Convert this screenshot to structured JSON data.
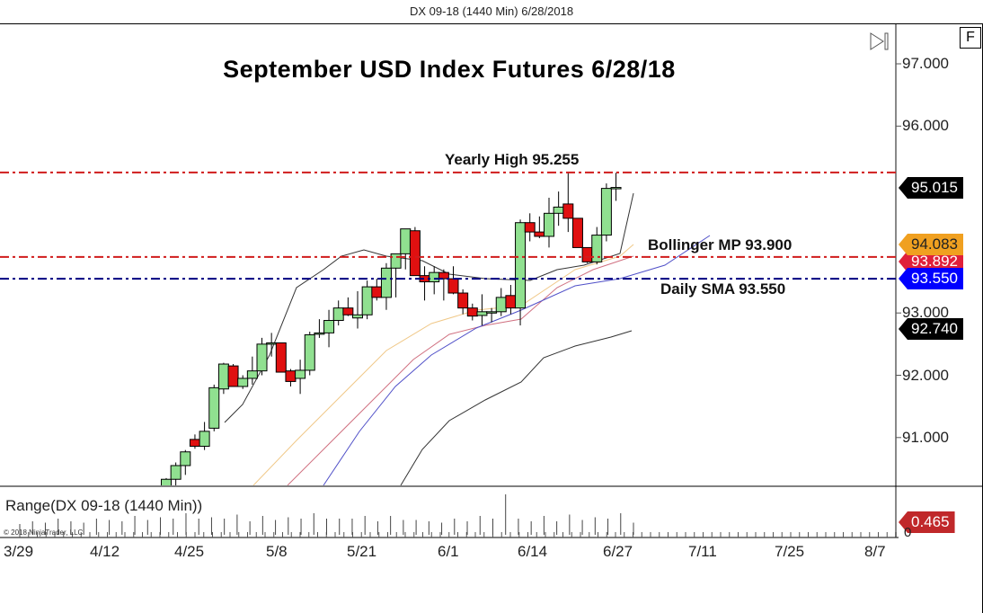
{
  "window": {
    "title": "DX 09-18 (1440 Min)  6/28/2018",
    "f_button": "F",
    "scroll_end_icon": "scroll-to-end-icon"
  },
  "chart_data": {
    "type": "candlestick",
    "title": "September USD Index Futures 6/28/18",
    "instrument": "DX 09-18 (1440 Min)",
    "xlabel": "",
    "ylabel": "",
    "x_tick_labels": [
      "3/29",
      "4/12",
      "4/25",
      "5/8",
      "5/21",
      "6/1",
      "6/14",
      "6/27",
      "7/11",
      "7/25",
      "8/7"
    ],
    "y_tick_labels": [
      "97.000",
      "96.000",
      "93.000",
      "92.000",
      "91.000"
    ],
    "ylim": [
      90.3,
      97.5
    ],
    "grid": false,
    "annotations": [
      {
        "text": "Yearly High 95.255",
        "value": 95.255,
        "line_color": "#d01c1c",
        "style": "dash-dot"
      },
      {
        "text": "Bollinger MP 93.900",
        "value": 93.9,
        "line_color": "#d01c1c",
        "style": "dash-dot"
      },
      {
        "text": "Daily SMA 93.550",
        "value": 93.55,
        "line_color": "#000080",
        "style": "dash-dot"
      }
    ],
    "price_markers": [
      {
        "value": "95.015",
        "color": "#000000",
        "text_color": "#ffffff"
      },
      {
        "value": "94.083",
        "color": "#f0a020",
        "text_color": "#222222"
      },
      {
        "value": "93.892",
        "color": "#e0203a",
        "text_color": "#ffffff"
      },
      {
        "value": "93.550",
        "color": "#0000ff",
        "text_color": "#ffffff"
      },
      {
        "value": "92.740",
        "color": "#000000",
        "text_color": "#ffffff"
      }
    ],
    "candles": [
      {
        "date": "4/19",
        "open": 90.2,
        "high": 90.35,
        "low": 90.05,
        "close": 90.33
      },
      {
        "date": "4/20",
        "open": 90.33,
        "high": 90.6,
        "low": 90.2,
        "close": 90.55
      },
      {
        "date": "4/23",
        "open": 90.55,
        "high": 90.8,
        "low": 90.4,
        "close": 90.77
      },
      {
        "date": "4/24",
        "open": 90.97,
        "high": 91.05,
        "low": 90.82,
        "close": 90.86
      },
      {
        "date": "4/25",
        "open": 90.86,
        "high": 91.25,
        "low": 90.8,
        "close": 91.1
      },
      {
        "date": "4/26",
        "open": 91.15,
        "high": 91.85,
        "low": 91.1,
        "close": 91.8
      },
      {
        "date": "4/27",
        "open": 91.78,
        "high": 92.2,
        "low": 91.7,
        "close": 92.18
      },
      {
        "date": "4/30",
        "open": 92.15,
        "high": 92.18,
        "low": 91.82,
        "close": 91.82
      },
      {
        "date": "5/1",
        "open": 91.82,
        "high": 92.0,
        "low": 91.78,
        "close": 91.95
      },
      {
        "date": "5/2",
        "open": 91.95,
        "high": 92.3,
        "low": 91.85,
        "close": 92.07
      },
      {
        "date": "5/3",
        "open": 92.07,
        "high": 92.6,
        "low": 92.0,
        "close": 92.5
      },
      {
        "date": "5/4",
        "open": 92.5,
        "high": 92.68,
        "low": 92.3,
        "close": 92.52
      },
      {
        "date": "5/7",
        "open": 92.52,
        "high": 92.52,
        "low": 92.05,
        "close": 92.05
      },
      {
        "date": "5/8",
        "open": 92.07,
        "high": 92.1,
        "low": 91.82,
        "close": 91.9
      },
      {
        "date": "5/9",
        "open": 91.95,
        "high": 92.25,
        "low": 91.7,
        "close": 92.08
      },
      {
        "date": "5/10",
        "open": 92.08,
        "high": 92.7,
        "low": 92.0,
        "close": 92.65
      },
      {
        "date": "5/11",
        "open": 92.68,
        "high": 92.9,
        "low": 92.6,
        "close": 92.68
      },
      {
        "date": "5/14",
        "open": 92.68,
        "high": 93.05,
        "low": 92.45,
        "close": 92.88
      },
      {
        "date": "5/15",
        "open": 92.88,
        "high": 93.2,
        "low": 92.8,
        "close": 93.08
      },
      {
        "date": "5/16",
        "open": 93.08,
        "high": 93.25,
        "low": 92.95,
        "close": 92.97
      },
      {
        "date": "5/17",
        "open": 92.92,
        "high": 93.35,
        "low": 92.75,
        "close": 92.97
      },
      {
        "date": "5/18",
        "open": 92.97,
        "high": 93.52,
        "low": 92.9,
        "close": 93.42
      },
      {
        "date": "5/21",
        "open": 93.42,
        "high": 93.55,
        "low": 93.2,
        "close": 93.25
      },
      {
        "date": "5/22",
        "open": 93.25,
        "high": 93.8,
        "low": 93.05,
        "close": 93.72
      },
      {
        "date": "5/23",
        "open": 93.72,
        "high": 93.95,
        "low": 93.25,
        "close": 93.95
      },
      {
        "date": "5/24",
        "open": 93.95,
        "high": 94.35,
        "low": 93.7,
        "close": 94.35
      },
      {
        "date": "5/25",
        "open": 94.32,
        "high": 94.38,
        "low": 93.6,
        "close": 93.6
      },
      {
        "date": "5/29",
        "open": 93.6,
        "high": 93.75,
        "low": 93.2,
        "close": 93.5
      },
      {
        "date": "5/30",
        "open": 93.5,
        "high": 93.75,
        "low": 93.3,
        "close": 93.65
      },
      {
        "date": "5/31",
        "open": 93.65,
        "high": 93.7,
        "low": 93.2,
        "close": 93.55
      },
      {
        "date": "6/1",
        "open": 93.55,
        "high": 93.75,
        "low": 93.3,
        "close": 93.32
      },
      {
        "date": "6/4",
        "open": 93.32,
        "high": 93.38,
        "low": 92.98,
        "close": 93.08
      },
      {
        "date": "6/5",
        "open": 93.08,
        "high": 93.15,
        "low": 92.88,
        "close": 92.95
      },
      {
        "date": "6/6",
        "open": 92.96,
        "high": 93.3,
        "low": 92.8,
        "close": 93.02
      },
      {
        "date": "6/7",
        "open": 93.02,
        "high": 93.08,
        "low": 92.85,
        "close": 93.02
      },
      {
        "date": "6/8",
        "open": 93.02,
        "high": 93.4,
        "low": 92.95,
        "close": 93.25
      },
      {
        "date": "6/11",
        "open": 93.28,
        "high": 93.45,
        "low": 92.98,
        "close": 93.08
      },
      {
        "date": "6/12",
        "open": 93.08,
        "high": 94.5,
        "low": 92.8,
        "close": 94.45
      },
      {
        "date": "6/13",
        "open": 94.45,
        "high": 94.6,
        "low": 94.15,
        "close": 94.3
      },
      {
        "date": "6/14",
        "open": 94.3,
        "high": 94.55,
        "low": 94.2,
        "close": 94.23
      },
      {
        "date": "6/15",
        "open": 94.23,
        "high": 94.85,
        "low": 94.05,
        "close": 94.6
      },
      {
        "date": "6/18",
        "open": 94.6,
        "high": 94.95,
        "low": 94.4,
        "close": 94.7
      },
      {
        "date": "6/19",
        "open": 94.75,
        "high": 95.25,
        "low": 94.3,
        "close": 94.52
      },
      {
        "date": "6/20",
        "open": 94.52,
        "high": 94.52,
        "low": 94.05,
        "close": 94.05
      },
      {
        "date": "6/21",
        "open": 94.05,
        "high": 94.05,
        "low": 93.8,
        "close": 93.82
      },
      {
        "date": "6/22",
        "open": 93.82,
        "high": 94.38,
        "low": 93.78,
        "close": 94.25
      },
      {
        "date": "6/25",
        "open": 94.25,
        "high": 95.08,
        "low": 94.15,
        "close": 95.0
      },
      {
        "date": "6/26",
        "open": 95.0,
        "high": 95.25,
        "low": 94.8,
        "close": 95.015
      }
    ],
    "series": [
      {
        "name": "Bollinger upper/mid band (black)",
        "color": "#333333"
      },
      {
        "name": "EMA fast (orange)",
        "color": "#f0c070"
      },
      {
        "name": "EMA (pink)",
        "color": "#d07080"
      },
      {
        "name": "SMA (blue)",
        "color": "#4040c0"
      },
      {
        "name": "SMA long (dark gray)",
        "color": "#333333"
      }
    ],
    "range_panel": {
      "title": "Range(DX 09-18 (1440 Min))",
      "last_value": "0.465",
      "zero_label": "0",
      "marker_color": "#c0282a"
    }
  },
  "labels": {
    "yearly_high": "Yearly High 95.255",
    "bollinger": "Bollinger MP 93.900",
    "daily_sma": "Daily SMA 93.550",
    "copyright": "© 2018 NinjaTrader, LLC"
  }
}
